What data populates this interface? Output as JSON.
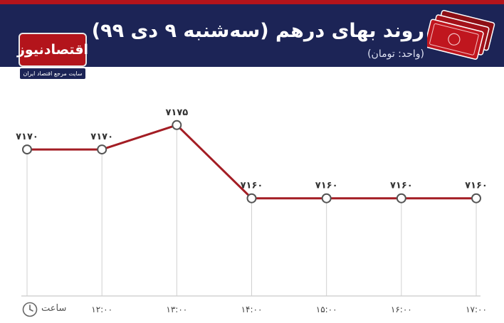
{
  "header": {
    "title": "روند بهای درهم (سه‌شنبه ۹ دی ۹۹)",
    "unit": "(واحد: تومان)"
  },
  "logo": {
    "name": "اقتصادنیوز",
    "tagline": "سایت مرجع اقتصاد ایران"
  },
  "colors": {
    "header_bg": "#1c2456",
    "accent_red": "#b3141b",
    "line": "#a31d24"
  },
  "icons": [
    "money-bills-icon",
    "clock-icon"
  ],
  "chart_data": {
    "type": "line",
    "title": "روند بهای درهم (سه‌شنبه ۹ دی ۹۹)",
    "subtitle": "(واحد: تومان)",
    "xlabel": "ساعت",
    "ylabel": "",
    "x_labels": [
      "",
      "۱۲:۰۰",
      "۱۳:۰۰",
      "۱۴:۰۰",
      "۱۵:۰۰",
      "۱۶:۰۰",
      "۱۷:۰۰"
    ],
    "series": [
      {
        "values": [
          7170,
          7170,
          7175,
          7160,
          7160,
          7160,
          7160
        ],
        "labels": [
          "۷۱۷۰",
          "۷۱۷۰",
          "۷۱۷۵",
          "۷۱۶۰",
          "۷۱۶۰",
          "۷۱۶۰",
          "۷۱۶۰"
        ]
      }
    ],
    "ylim": [
      7140,
      7184
    ],
    "grid": false,
    "legend": "none"
  }
}
